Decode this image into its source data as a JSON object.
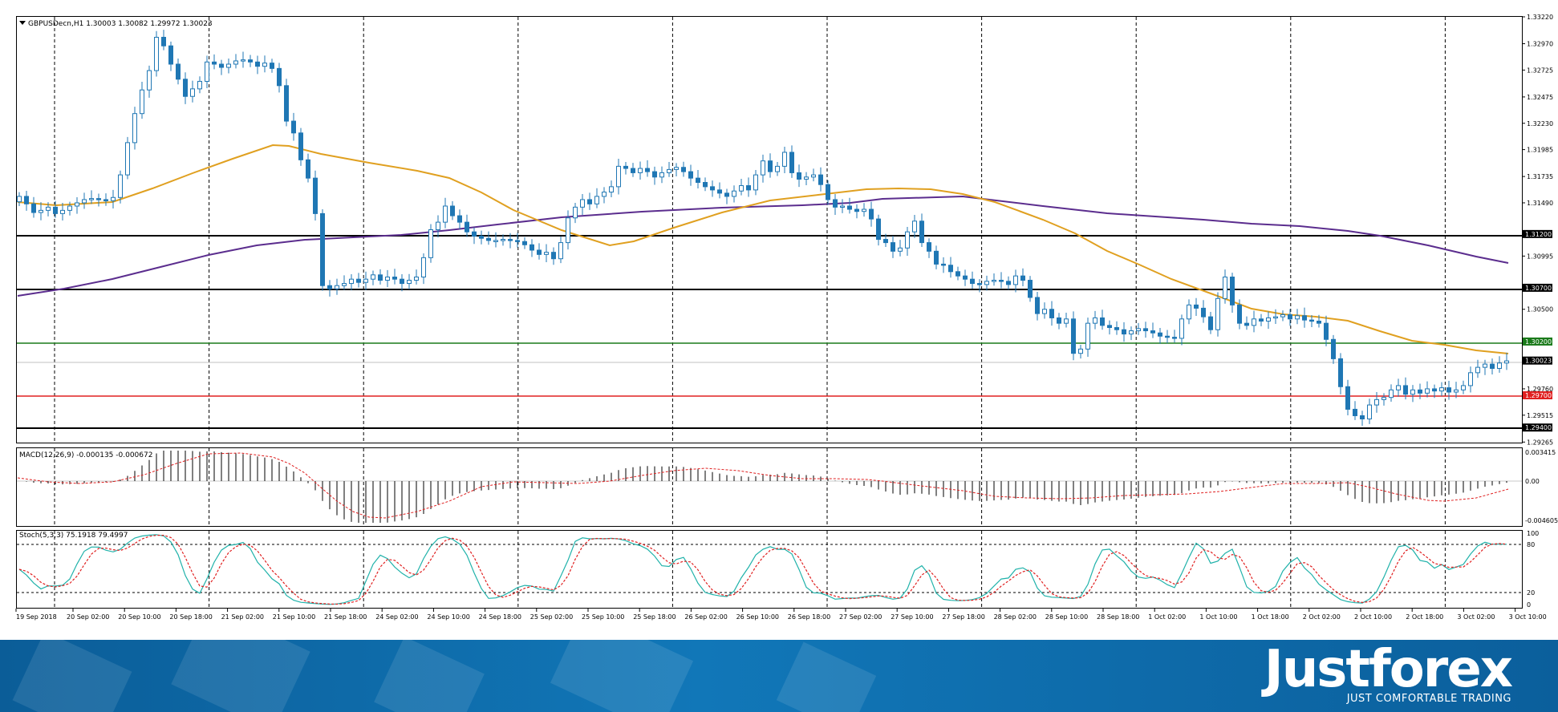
{
  "header": {
    "symbol_info": "GBPUSDecn,H1  1.30003 1.30082 1.29972 1.30023",
    "macd_info": "MACD(12,26,9) -0.000135 -0.000672",
    "stoch_info": "Stoch(5,3,3) 75.1918 79.4997"
  },
  "colors": {
    "candle": "#1f77b4",
    "ma_fast": "#e0a020",
    "ma_slow": "#5b2d8e",
    "level_black": "#000000",
    "level_green": "#1a7a1a",
    "level_red": "#e02020",
    "stoch_main": "#20b2aa",
    "stoch_signal": "#e02020",
    "macd_signal": "#e02020"
  },
  "price_axis": {
    "ticks": [
      "1.33220",
      "1.32970",
      "1.32725",
      "1.32475",
      "1.32230",
      "1.31985",
      "1.31735",
      "1.31490",
      "1.30995",
      "1.30500",
      "1.29760",
      "1.29515",
      "1.29265"
    ],
    "labels": [
      {
        "text": "1.31200",
        "value": 1.312,
        "bg": "#000000"
      },
      {
        "text": "1.30700",
        "value": 1.307,
        "bg": "#000000"
      },
      {
        "text": "1.30200",
        "value": 1.302,
        "bg": "#1a7a1a"
      },
      {
        "text": "1.30023",
        "value": 1.30023,
        "bg": "#000000"
      },
      {
        "text": "1.29700",
        "value": 1.297,
        "bg": "#e02020"
      },
      {
        "text": "1.29400",
        "value": 1.294,
        "bg": "#000000"
      }
    ]
  },
  "macd_axis": {
    "ticks": [
      "0.003415",
      "0.00",
      "-0.004605"
    ]
  },
  "stoch_axis": {
    "ticks": [
      "100",
      "80",
      "20",
      "0"
    ]
  },
  "time_axis": [
    "19 Sep 2018",
    "20 Sep 02:00",
    "20 Sep 10:00",
    "20 Sep 18:00",
    "21 Sep 02:00",
    "21 Sep 10:00",
    "21 Sep 18:00",
    "24 Sep 02:00",
    "24 Sep 10:00",
    "24 Sep 18:00",
    "25 Sep 02:00",
    "25 Sep 10:00",
    "25 Sep 18:00",
    "26 Sep 02:00",
    "26 Sep 10:00",
    "26 Sep 18:00",
    "27 Sep 02:00",
    "27 Sep 10:00",
    "27 Sep 18:00",
    "28 Sep 02:00",
    "28 Sep 10:00",
    "28 Sep 18:00",
    "1 Oct 02:00",
    "1 Oct 10:00",
    "1 Oct 18:00",
    "2 Oct 02:00",
    "2 Oct 10:00",
    "2 Oct 18:00",
    "3 Oct 02:00",
    "3 Oct 10:00"
  ],
  "chart_data": {
    "type": "candlestick",
    "symbol": "GBPUSDecn",
    "timeframe": "H1",
    "ylim": [
      1.2926,
      1.3322
    ],
    "levels": [
      1.312,
      1.307,
      1.302,
      1.297,
      1.294
    ],
    "bid_line": 1.30023,
    "close": [
      1.3155,
      1.3148,
      1.314,
      1.3142,
      1.3145,
      1.3139,
      1.3142,
      1.3146,
      1.3149,
      1.3152,
      1.3153,
      1.3152,
      1.3151,
      1.3154,
      1.3175,
      1.3205,
      1.3232,
      1.3254,
      1.3272,
      1.3303,
      1.3295,
      1.3278,
      1.3264,
      1.3248,
      1.3255,
      1.3262,
      1.328,
      1.3278,
      1.3275,
      1.3278,
      1.3281,
      1.3282,
      1.328,
      1.3276,
      1.3279,
      1.3274,
      1.3258,
      1.3225,
      1.3214,
      1.3189,
      1.3172,
      1.3139,
      1.3072,
      1.3069,
      1.3072,
      1.3074,
      1.3078,
      1.3075,
      1.3078,
      1.3082,
      1.3077,
      1.308,
      1.3078,
      1.3074,
      1.3077,
      1.308,
      1.3098,
      1.3124,
      1.3131,
      1.3146,
      1.3137,
      1.3131,
      1.3122,
      1.3118,
      1.3116,
      1.3114,
      1.3114,
      1.3115,
      1.3114,
      1.3113,
      1.311,
      1.3105,
      1.3101,
      1.3103,
      1.3097,
      1.3112,
      1.3135,
      1.3145,
      1.3152,
      1.3148,
      1.3155,
      1.3159,
      1.3164,
      1.3183,
      1.3181,
      1.3177,
      1.3181,
      1.3178,
      1.3173,
      1.3177,
      1.318,
      1.3182,
      1.3178,
      1.3172,
      1.3168,
      1.3164,
      1.3161,
      1.3158,
      1.3155,
      1.316,
      1.3165,
      1.3161,
      1.3175,
      1.3188,
      1.3178,
      1.3183,
      1.3196,
      1.3177,
      1.3171,
      1.3173,
      1.3175,
      1.3166,
      1.3152,
      1.3145,
      1.3146,
      1.3143,
      1.3141,
      1.3143,
      1.3134,
      1.3115,
      1.3112,
      1.3104,
      1.3107,
      1.3122,
      1.3132,
      1.3112,
      1.3104,
      1.3092,
      1.3091,
      1.3085,
      1.3081,
      1.3078,
      1.3074,
      1.3073,
      1.3076,
      1.3077,
      1.3076,
      1.3073,
      1.3081,
      1.3077,
      1.3061,
      1.3046,
      1.305,
      1.3042,
      1.3037,
      1.3041,
      1.3009,
      1.3013,
      1.3037,
      1.3042,
      1.3035,
      1.3033,
      1.3031,
      1.3027,
      1.303,
      1.3032,
      1.303,
      1.3028,
      1.3025,
      1.3024,
      1.3023,
      1.3041,
      1.3054,
      1.3051,
      1.3043,
      1.3031,
      1.306,
      1.308,
      1.3054,
      1.3037,
      1.3035,
      1.3041,
      1.3039,
      1.3042,
      1.3043,
      1.3045,
      1.3041,
      1.3044,
      1.304,
      1.3039,
      1.3037,
      1.3022,
      1.3004,
      1.2978,
      1.2957,
      1.2951,
      1.2948,
      1.2961,
      1.2966,
      1.2968,
      1.2975,
      1.2979,
      1.2971,
      1.2975,
      1.2972,
      1.2976,
      1.2974,
      1.2977,
      1.2973,
      1.2975,
      1.2979,
      1.2991,
      1.2996,
      1.2999,
      1.2995,
      1.3,
      1.3002
    ]
  },
  "brand": {
    "logo": "Justforex",
    "tagline": "JUST COMFORTABLE TRADING"
  }
}
